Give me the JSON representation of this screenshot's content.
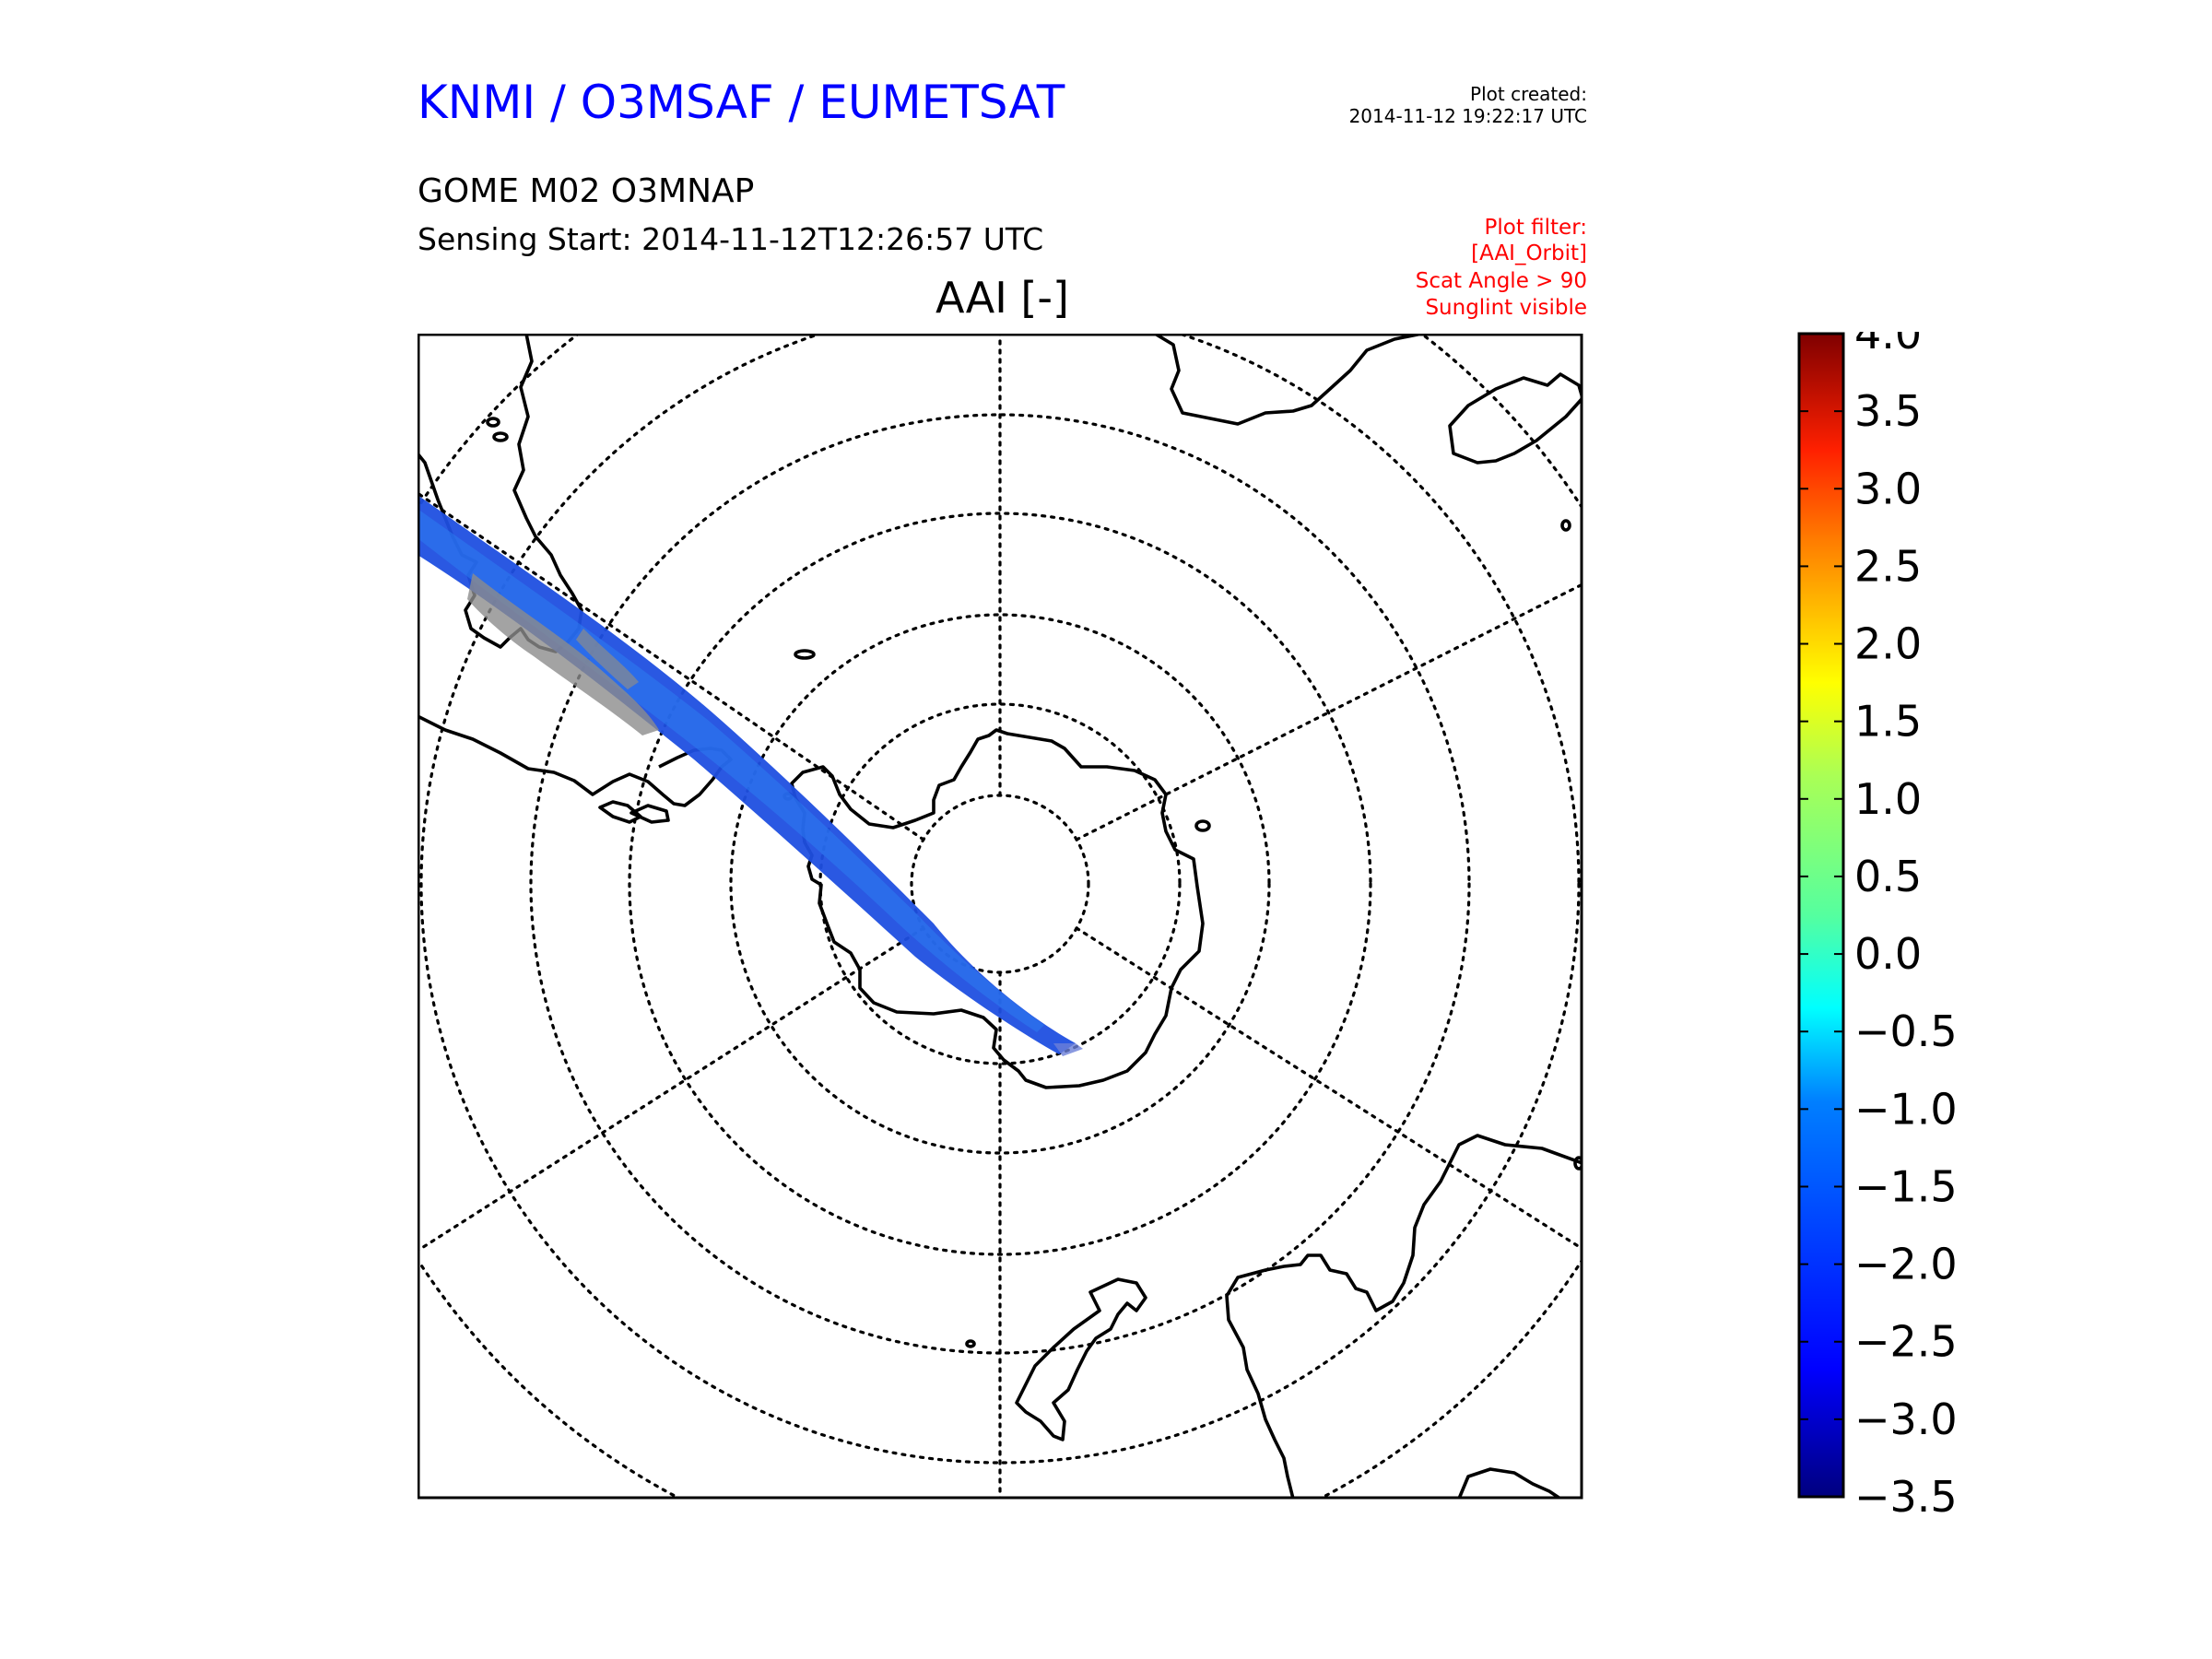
{
  "header": {
    "org_title": "KNMI / O3MSAF / EUMETSAT",
    "plot_created_label": "Plot created:",
    "plot_created_time": "2014-11-12 19:22:17 UTC",
    "product": "GOME M02 O3MNAP",
    "sensing_start": "Sensing Start: 2014-11-12T12:26:57 UTC",
    "filter_lines": [
      "Plot filter:",
      "[AAI_Orbit]",
      "Scat Angle > 90",
      "Sunglint visible"
    ]
  },
  "map": {
    "title": "AAI [-]",
    "projection": "south-polar-stereographic",
    "gridlines": "dotted"
  },
  "colorbar": {
    "min": -3.5,
    "max": 4.0,
    "ticks": [
      "4.0",
      "3.5",
      "3.0",
      "2.5",
      "2.0",
      "1.5",
      "1.0",
      "0.5",
      "0.0",
      "−0.5",
      "−1.0",
      "−1.5",
      "−2.0",
      "−2.5",
      "−3.0",
      "−3.5"
    ],
    "colormap": "jet"
  },
  "colors": {
    "title_blue": "#0000ff",
    "filter_red": "#ff0000",
    "swath_blue": "#1f4fe0",
    "no_data_grey": "#8c8c8c"
  }
}
